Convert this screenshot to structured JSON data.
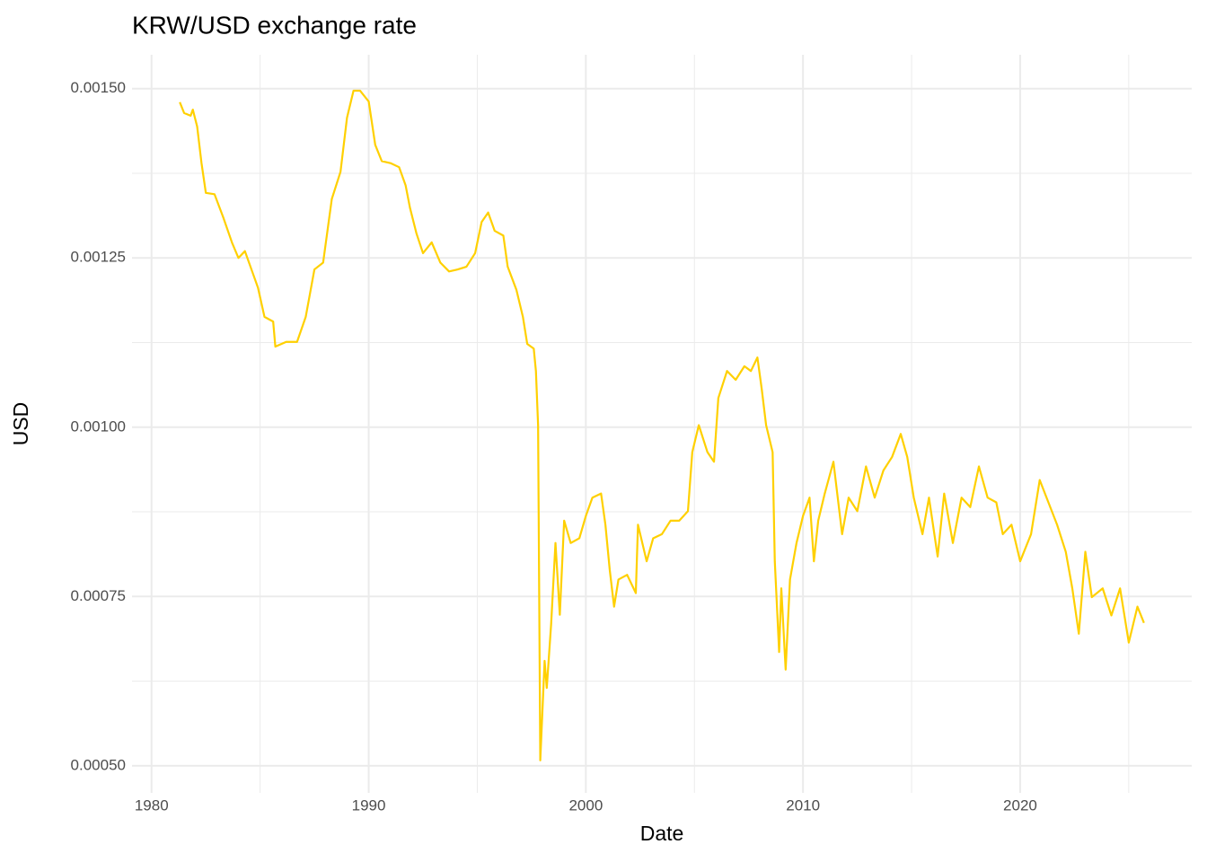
{
  "chart_data": {
    "type": "line",
    "title": "KRW/USD exchange rate",
    "x_label": "Date",
    "y_label": "USD",
    "x": [
      1981.3,
      1981.5,
      1981.8,
      1981.9,
      1982.1,
      1982.3,
      1982.5,
      1982.9,
      1983.3,
      1983.7,
      1984.0,
      1984.3,
      1984.6,
      1984.9,
      1985.2,
      1985.6,
      1985.7,
      1986.2,
      1986.7,
      1987.1,
      1987.5,
      1987.9,
      1988.3,
      1988.7,
      1989.0,
      1989.3,
      1989.6,
      1990.0,
      1990.3,
      1990.6,
      1991.0,
      1991.4,
      1991.7,
      1991.9,
      1992.2,
      1992.5,
      1992.9,
      1993.3,
      1993.7,
      1994.1,
      1994.5,
      1994.9,
      1995.2,
      1995.5,
      1995.8,
      1996.2,
      1996.4,
      1996.8,
      1997.1,
      1997.3,
      1997.6,
      1997.7,
      1997.8,
      1997.9,
      1998.1,
      1998.2,
      1998.4,
      1998.6,
      1998.8,
      1999.0,
      1999.3,
      1999.7,
      2000.0,
      2000.3,
      2000.7,
      2000.9,
      2001.1,
      2001.3,
      2001.5,
      2001.9,
      2002.3,
      2002.4,
      2002.8,
      2003.1,
      2003.5,
      2003.9,
      2004.3,
      2004.7,
      2004.9,
      2005.2,
      2005.6,
      2005.9,
      2006.1,
      2006.5,
      2006.9,
      2007.3,
      2007.6,
      2007.9,
      2008.1,
      2008.3,
      2008.6,
      2008.7,
      2008.9,
      2009.0,
      2009.2,
      2009.4,
      2009.7,
      2010.0,
      2010.3,
      2010.5,
      2010.7,
      2011.0,
      2011.4,
      2011.8,
      2012.1,
      2012.5,
      2012.9,
      2013.3,
      2013.7,
      2014.1,
      2014.5,
      2014.8,
      2015.1,
      2015.5,
      2015.8,
      2016.2,
      2016.5,
      2016.9,
      2017.3,
      2017.7,
      2018.1,
      2018.5,
      2018.9,
      2019.2,
      2019.6,
      2020.0,
      2020.5,
      2020.9,
      2021.3,
      2021.7,
      2022.1,
      2022.4,
      2022.7,
      2023.0,
      2023.3,
      2023.8,
      2024.2,
      2024.6,
      2025.0,
      2025.4,
      2025.7
    ],
    "series": [
      {
        "name": "USD",
        "color": "#ffd000",
        "values": [
          0.00148,
          0.001464,
          0.00146,
          0.001469,
          0.001444,
          0.00139,
          0.001346,
          0.001344,
          0.00131,
          0.001273,
          0.00125,
          0.00126,
          0.001233,
          0.001206,
          0.001163,
          0.001156,
          0.001119,
          0.001126,
          0.001126,
          0.001163,
          0.001233,
          0.001243,
          0.001337,
          0.001377,
          0.001457,
          0.001497,
          0.001497,
          0.001481,
          0.001417,
          0.001393,
          0.00139,
          0.001384,
          0.001357,
          0.001324,
          0.001286,
          0.001257,
          0.001273,
          0.001243,
          0.00123,
          0.001233,
          0.001237,
          0.001257,
          0.001303,
          0.001317,
          0.00129,
          0.001283,
          0.001237,
          0.001203,
          0.001163,
          0.001123,
          0.001116,
          0.001083,
          0.001003,
          0.000508,
          0.000655,
          0.000615,
          0.000709,
          0.000829,
          0.000723,
          0.000862,
          0.000829,
          0.000836,
          0.000869,
          0.000896,
          0.000902,
          0.000856,
          0.000789,
          0.000735,
          0.000775,
          0.000782,
          0.000755,
          0.000856,
          0.000802,
          0.000836,
          0.000842,
          0.000862,
          0.000862,
          0.000876,
          0.000963,
          0.001003,
          0.000963,
          0.000949,
          0.001043,
          0.001083,
          0.00107,
          0.00109,
          0.001083,
          0.001103,
          0.001056,
          0.001003,
          0.000963,
          0.000802,
          0.000668,
          0.000762,
          0.000642,
          0.000775,
          0.000829,
          0.000869,
          0.000896,
          0.000802,
          0.000862,
          0.000902,
          0.000949,
          0.000842,
          0.000896,
          0.000876,
          0.000942,
          0.000896,
          0.000936,
          0.000956,
          0.00099,
          0.000956,
          0.000896,
          0.000842,
          0.000896,
          0.000809,
          0.000902,
          0.000829,
          0.000896,
          0.000882,
          0.000942,
          0.000896,
          0.000889,
          0.000842,
          0.000856,
          0.000802,
          0.000842,
          0.000922,
          0.000889,
          0.000856,
          0.000816,
          0.000762,
          0.000695,
          0.000816,
          0.000749,
          0.000762,
          0.000722,
          0.000762,
          0.000682,
          0.000735,
          0.000711
        ]
      }
    ],
    "xlim": [
      1979.1,
      2027.9
    ],
    "xticks": [
      1980,
      1990,
      2000,
      2010,
      2020
    ],
    "xticks_minor": [
      1985,
      1995,
      2005,
      2015,
      2025
    ],
    "ylim": [
      0.00046,
      0.00155
    ],
    "yticks": [
      {
        "value": 0.0005,
        "label": "0.00050"
      },
      0.00075,
      {
        "value": 0.001,
        "label": "0.00100"
      },
      0.00125,
      {
        "value": 0.0015,
        "label": "0.00150"
      }
    ],
    "yticks_minor": [
      0.000625,
      0.000875,
      0.001125,
      0.001375
    ],
    "grid": true
  }
}
